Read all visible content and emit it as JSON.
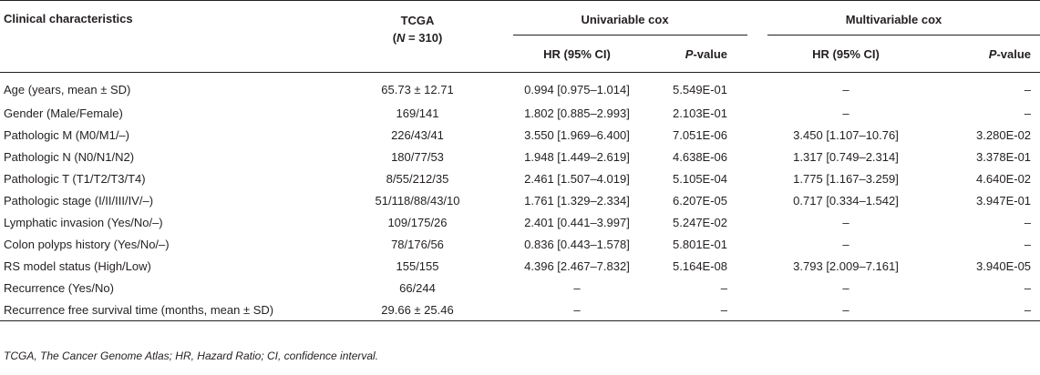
{
  "table": {
    "headers": {
      "clinical": "Clinical characteristics",
      "tcga_line1": "TCGA",
      "tcga_line2_prefix": "(",
      "tcga_n": "N",
      "tcga_line2_suffix": " = 310)",
      "univariable": "Univariable cox",
      "multivariable": "Multivariable cox",
      "hr": "HR (95% CI)",
      "p_italic": "P",
      "p_suffix": "-value"
    },
    "rows": [
      {
        "label": "Age (years, mean ± SD)",
        "tcga": "65.73 ± 12.71",
        "uni_hr": "0.994 [0.975–1.014]",
        "uni_p": "5.549E-01",
        "multi_hr": "–",
        "multi_p": "–"
      },
      {
        "label": "Gender (Male/Female)",
        "tcga": "169/141",
        "uni_hr": "1.802 [0.885–2.993]",
        "uni_p": "2.103E-01",
        "multi_hr": "–",
        "multi_p": "–"
      },
      {
        "label": "Pathologic M (M0/M1/–)",
        "tcga": "226/43/41",
        "uni_hr": "3.550 [1.969–6.400]",
        "uni_p": "7.051E-06",
        "multi_hr": "3.450 [1.107–10.76]",
        "multi_p": "3.280E-02"
      },
      {
        "label": "Pathologic N (N0/N1/N2)",
        "tcga": "180/77/53",
        "uni_hr": "1.948 [1.449–2.619]",
        "uni_p": "4.638E-06",
        "multi_hr": "1.317 [0.749–2.314]",
        "multi_p": "3.378E-01"
      },
      {
        "label": "Pathologic T (T1/T2/T3/T4)",
        "tcga": "8/55/212/35",
        "uni_hr": "2.461 [1.507–4.019]",
        "uni_p": "5.105E-04",
        "multi_hr": "1.775 [1.167–3.259]",
        "multi_p": "4.640E-02"
      },
      {
        "label": "Pathologic stage (I/II/III/IV/–)",
        "tcga": "51/118/88/43/10",
        "uni_hr": "1.761 [1.329–2.334]",
        "uni_p": "6.207E-05",
        "multi_hr": "0.717 [0.334–1.542]",
        "multi_p": "3.947E-01"
      },
      {
        "label": "Lymphatic invasion (Yes/No/–)",
        "tcga": "109/175/26",
        "uni_hr": "2.401 [0.441–3.997]",
        "uni_p": "5.247E-02",
        "multi_hr": "–",
        "multi_p": "–"
      },
      {
        "label": "Colon polyps history (Yes/No/–)",
        "tcga": "78/176/56",
        "uni_hr": "0.836 [0.443–1.578]",
        "uni_p": "5.801E-01",
        "multi_hr": "–",
        "multi_p": "–"
      },
      {
        "label": "RS model status (High/Low)",
        "tcga": "155/155",
        "uni_hr": "4.396 [2.467–7.832]",
        "uni_p": "5.164E-08",
        "multi_hr": "3.793 [2.009–7.161]",
        "multi_p": "3.940E-05"
      },
      {
        "label": "Recurrence (Yes/No)",
        "tcga": "66/244",
        "uni_hr": "–",
        "uni_p": "–",
        "multi_hr": "–",
        "multi_p": "–"
      },
      {
        "label": "Recurrence free survival time (months, mean ± SD)",
        "tcga": "29.66 ± 25.46",
        "uni_hr": "–",
        "uni_p": "–",
        "multi_hr": "–",
        "multi_p": "–"
      }
    ]
  },
  "footnote": "TCGA, The Cancer Genome Atlas; HR, Hazard Ratio; CI, confidence interval."
}
